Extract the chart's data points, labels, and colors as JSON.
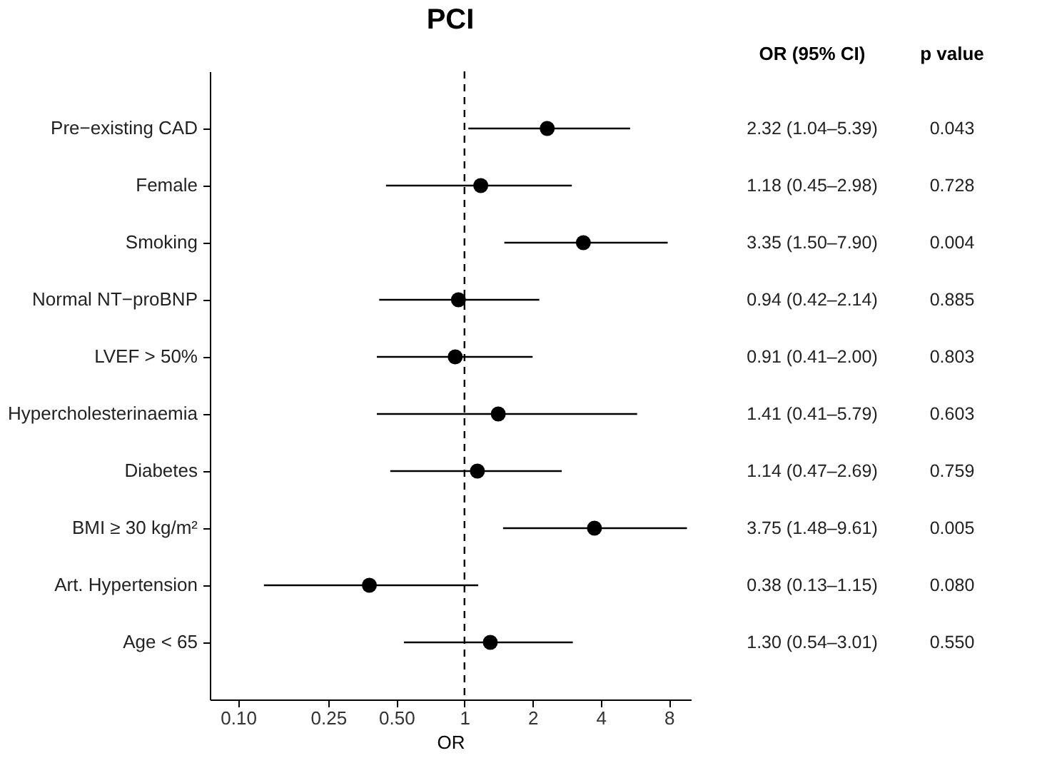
{
  "chart_data": {
    "type": "scatter",
    "title": "PCI",
    "xlabel": "OR",
    "orientation": "horizontal",
    "log": "x",
    "color": "#000000",
    "marker": "circle",
    "categories": [
      "Pre−existing CAD",
      "Female",
      "Smoking",
      "Normal NT−proBNP",
      "LVEF > 50%",
      "Hypercholesterinaemia",
      "Diabetes",
      "BMI ≥ 30 kg/m²",
      "Art. Hypertension",
      "Age < 65"
    ],
    "values": [
      2.32,
      1.18,
      3.35,
      0.94,
      0.91,
      1.41,
      1.14,
      3.75,
      0.38,
      1.3
    ],
    "errors": [
      [
        1.04,
        5.39
      ],
      [
        0.45,
        2.98
      ],
      [
        1.5,
        7.9
      ],
      [
        0.42,
        2.14
      ],
      [
        0.41,
        2.0
      ],
      [
        0.41,
        5.79
      ],
      [
        0.47,
        2.69
      ],
      [
        1.48,
        9.61
      ],
      [
        0.13,
        1.15
      ],
      [
        0.54,
        3.01
      ]
    ],
    "value_labels": [
      "2.32 (1.04–5.39)",
      "1.18 (0.45–2.98)",
      "3.35 (1.50–7.90)",
      "0.94 (0.42–2.14)",
      "0.91 (0.41–2.00)",
      "1.41 (0.41–5.79)",
      "1.14 (0.47–2.69)",
      "3.75 (1.48–9.61)",
      "0.38 (0.13–1.15)",
      "1.30 (0.54–3.01)"
    ],
    "xlim": [
      0.075,
      10
    ],
    "xticks": [
      {
        "value": 0.1,
        "label": "0.10"
      },
      0.25,
      {
        "value": 0.5,
        "label": "0.50"
      },
      1,
      2,
      4,
      8
    ],
    "ref_lines": [
      {
        "axis": "x",
        "value": 1,
        "line_style": "dashed"
      }
    ],
    "annotations": [
      "OR (95% CI)",
      "p value",
      "0.043",
      "0.728",
      "0.004",
      "0.885",
      "0.803",
      "0.603",
      "0.759",
      "0.005",
      "0.080",
      "0.550"
    ]
  }
}
